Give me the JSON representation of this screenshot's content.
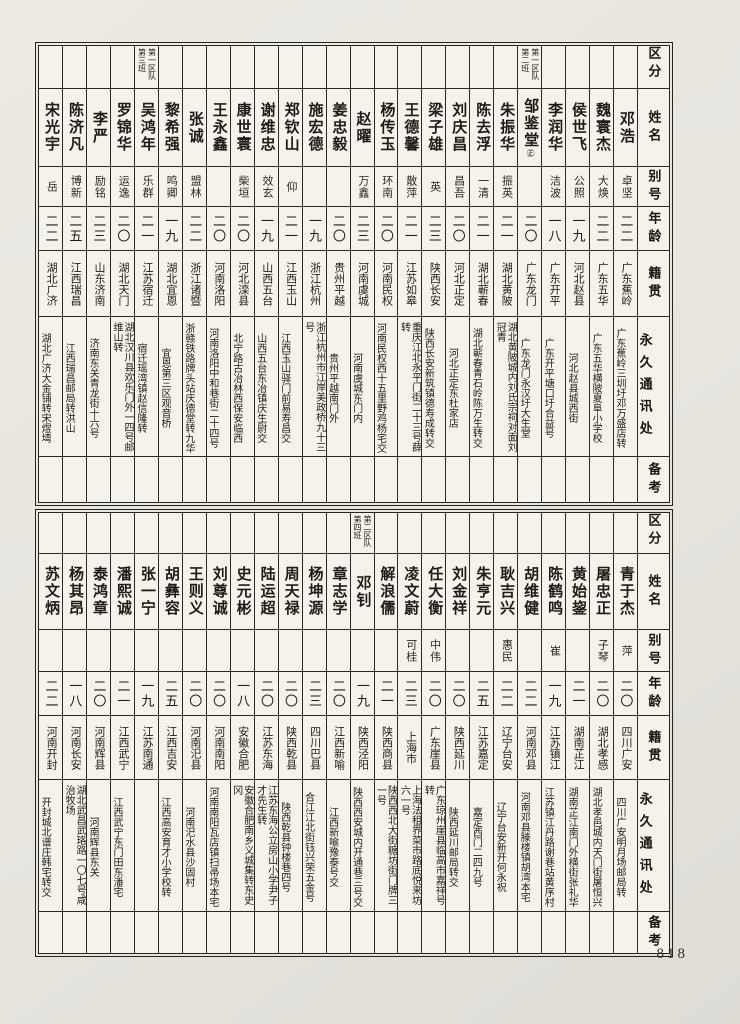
{
  "document": {
    "page_number": "818",
    "column_headers": {
      "group": "区分",
      "name": "姓名",
      "alias": "别号",
      "age": "年龄",
      "origin": "籍贯",
      "address": "永久通讯处",
      "remarks": "备考"
    }
  },
  "sections": [
    {
      "people": [
        {
          "name": "邓浩",
          "mark": "",
          "group": "",
          "alias": "卓坚",
          "age": "二二",
          "origin": "广东蕉岭",
          "address": "广东蕉岭三圳圩邓万盛店转"
        },
        {
          "name": "魏寰杰",
          "mark": "",
          "group": "",
          "alias": "大焕",
          "age": "二二",
          "origin": "广东五华",
          "address": "广东五华横陂夏阜小学校"
        },
        {
          "name": "侯世飞",
          "mark": "",
          "group": "",
          "alias": "公照",
          "age": "一九",
          "origin": "河北赵县",
          "address": "河北赵县城西街"
        },
        {
          "name": "李润华",
          "mark": "",
          "group": "",
          "alias": "洁波",
          "age": "一八",
          "origin": "广东开平",
          "address": "广东开平塘口圩合益号"
        },
        {
          "name": "邹鉴堂",
          "mark": "㊣",
          "group": "第一区队\n第二班",
          "alias": "",
          "age": "二〇",
          "origin": "广东龙门",
          "address": "广东龙门永汉圩大生堂"
        },
        {
          "name": "朱振华",
          "mark": "",
          "group": "",
          "alias": "振英",
          "age": "二一",
          "origin": "湖北黄陂",
          "address": "湖北黄陂城内刘氏宗祠对面刘冠青"
        },
        {
          "name": "陈去浮",
          "mark": "",
          "group": "",
          "alias": "一清",
          "age": "二一",
          "origin": "湖北蕲春",
          "address": "湖北蕲春青石岭陈万生转交"
        },
        {
          "name": "刘庆昌",
          "mark": "",
          "group": "",
          "alias": "昌吾",
          "age": "二〇",
          "origin": "河北正定",
          "address": "河北正定东杜家店"
        },
        {
          "name": "梁子雄",
          "mark": "",
          "group": "",
          "alias": "英",
          "age": "二三",
          "origin": "陕西长安",
          "address": "陕西长安新筑镇德寿成转交"
        },
        {
          "name": "王德馨",
          "mark": "",
          "group": "",
          "alias": "散萍",
          "age": "二一",
          "origin": "江苏如皋",
          "address": "重庆江北永平门街二十三号薛转"
        },
        {
          "name": "杨传玉",
          "mark": "",
          "group": "",
          "alias": "环南",
          "age": "二〇",
          "origin": "河南民权",
          "address": "河南民权西十五里野鸡杨宅交"
        },
        {
          "name": "赵曜",
          "mark": "",
          "group": "",
          "alias": "万鑫",
          "age": "二三",
          "origin": "河南虞城",
          "address": "河南虞城东门内"
        },
        {
          "name": "姜忠毅",
          "mark": "",
          "group": "",
          "alias": "",
          "age": "二〇",
          "origin": "贵州平越",
          "address": "贵州平越南门外"
        },
        {
          "name": "施宏德",
          "mark": "",
          "group": "",
          "alias": "",
          "age": "一九",
          "origin": "浙江杭州",
          "address": "浙江杭州市江岸美政桥九十三号"
        },
        {
          "name": "郑钦山",
          "mark": "",
          "group": "",
          "alias": "仰",
          "age": "二一",
          "origin": "江西玉山",
          "address": "江西玉山驿门前易寿昌交"
        },
        {
          "name": "谢维忠",
          "mark": "",
          "group": "",
          "alias": "效玄",
          "age": "一九",
          "origin": "山西五台",
          "address": "山西五台东冶镇庆生尉交"
        },
        {
          "name": "康世寰",
          "mark": "",
          "group": "",
          "alias": "柴垣",
          "age": "二〇",
          "origin": "河北滦县",
          "address": "北宁路古冶林西保安临西"
        },
        {
          "name": "王永鑫",
          "mark": "",
          "group": "",
          "alias": "",
          "age": "二〇",
          "origin": "河南洛阳",
          "address": "河南洛阳中和巷街二十四号"
        },
        {
          "name": "张诚",
          "mark": "",
          "group": "",
          "alias": "盟林",
          "age": "二二",
          "origin": "浙江诸暨",
          "address": "浙赣铁路牌头站庆德堂转九华"
        },
        {
          "name": "黎希强",
          "mark": "",
          "group": "",
          "alias": "鸣卿",
          "age": "一九",
          "origin": "湖北宜恩",
          "address": "宜恩第三区观音桥"
        },
        {
          "name": "吴鸿年",
          "mark": "",
          "group": "第一区队\n第三班",
          "alias": "乐群",
          "age": "二一",
          "origin": "江苏宿迁",
          "address": "宿迁瑶湾镇赵信隆转"
        },
        {
          "name": "罗锦华",
          "mark": "",
          "group": "",
          "alias": "运逸",
          "age": "二〇",
          "origin": "湖北天门",
          "address": "湖北汉川县欢乐门外一四号邮维山转"
        },
        {
          "name": "李严",
          "mark": "",
          "group": "",
          "alias": "励铭",
          "age": "二三",
          "origin": "山东济南",
          "address": "济南东关青龙街十六号"
        },
        {
          "name": "陈济凡",
          "mark": "",
          "group": "",
          "alias": "博新",
          "age": "二五",
          "origin": "江西瑞昌",
          "address": "江西瑞昌邮局转洪山"
        },
        {
          "name": "宋光宇",
          "mark": "",
          "group": "",
          "alias": "岳",
          "age": "二二",
          "origin": "湖北广济",
          "address": "湖北广济大金铺转宋煜塆"
        }
      ]
    },
    {
      "people": [
        {
          "name": "青于杰",
          "mark": "",
          "group": "",
          "alias": "萍",
          "age": "二〇",
          "origin": "四川广安",
          "address": "四川广安明月场邮局转"
        },
        {
          "name": "屠忠正",
          "mark": "",
          "group": "",
          "alias": "子琴",
          "age": "二〇",
          "origin": "湖北孝感",
          "address": "湖北孝邑城内天门街屠恒兴"
        },
        {
          "name": "黄始鋆",
          "mark": "",
          "group": "",
          "alias": "",
          "age": "二一",
          "origin": "湖南芷江",
          "address": "湖南芷江南门外横街张礼华"
        },
        {
          "name": "陈鹤鸣",
          "mark": "",
          "group": "",
          "alias": "崔",
          "age": "一九",
          "origin": "江苏镇江",
          "address": "江苏镇江丹路谢巷站黄序村"
        },
        {
          "name": "胡维健",
          "mark": "",
          "group": "",
          "alias": "",
          "age": "二二",
          "origin": "河南邓县",
          "address": "河南邓县滕楼镇胡湾本宅"
        },
        {
          "name": "耿吉兴",
          "mark": "",
          "group": "",
          "alias": "惠民",
          "age": "二二",
          "origin": "辽宁台安",
          "address": "辽宁台安新开何永祝"
        },
        {
          "name": "朱亨元",
          "mark": "",
          "group": "",
          "alias": "",
          "age": "二五",
          "origin": "江苏嘉定",
          "address": "嘉定西门二四九号"
        },
        {
          "name": "刘金祥",
          "mark": "",
          "group": "",
          "alias": "",
          "age": "二〇",
          "origin": "陕西延川",
          "address": "陕西延川邮局转交"
        },
        {
          "name": "任大衡",
          "mark": "",
          "group": "",
          "alias": "中伟",
          "age": "二〇",
          "origin": "广东崖县",
          "address": "广东琼州崖县临高市嘉祥号转"
        },
        {
          "name": "凌文蔚",
          "mark": "",
          "group": "",
          "alias": "可桂",
          "age": "二三",
          "origin": "上海市",
          "address": "上海法租界菜市路底悦来坊六一号"
        },
        {
          "name": "解浪儒",
          "mark": "",
          "group": "",
          "alias": "",
          "age": "二一",
          "origin": "陕西商县",
          "address": "陕西西北大街糖坊街门牌三一号"
        },
        {
          "name": "邓钊",
          "mark": "",
          "group": "第二区队\n第四班",
          "alias": "",
          "age": "一九",
          "origin": "陕西泾阳",
          "address": "陕西西安城内开通巷三号交"
        },
        {
          "name": "章志学",
          "mark": "",
          "group": "",
          "alias": "",
          "age": "二〇",
          "origin": "江西新喻",
          "address": "江西新喻豫泰号交"
        },
        {
          "name": "杨坤源",
          "mark": "",
          "group": "",
          "alias": "",
          "age": "二三",
          "origin": "四川巴县",
          "address": "合江江北街钰兴荣五金号"
        },
        {
          "name": "周天禄",
          "mark": "",
          "group": "",
          "alias": "",
          "age": "二〇",
          "origin": "陕西乾县",
          "address": "陕西乾县钟楼巷四号"
        },
        {
          "name": "陆运超",
          "mark": "",
          "group": "",
          "alias": "",
          "age": "二〇",
          "origin": "江苏东海",
          "address": "江苏东海公立房山小学尹子才先生转"
        },
        {
          "name": "史元彬",
          "mark": "",
          "group": "",
          "alias": "",
          "age": "一八",
          "origin": "安徽合肥",
          "address": "安徽合肥南乡义城集转东史冈"
        },
        {
          "name": "刘尊诚",
          "mark": "",
          "group": "",
          "alias": "",
          "age": "二〇",
          "origin": "河南南阳",
          "address": "河南南阳瓦店镇扫帚场本宅"
        },
        {
          "name": "王则义",
          "mark": "",
          "group": "",
          "alias": "",
          "age": "二〇",
          "origin": "河南汜县",
          "address": "河南汜水县沙固村"
        },
        {
          "name": "胡彝容",
          "mark": "",
          "group": "",
          "alias": "",
          "age": "二五",
          "origin": "江西吉安",
          "address": "江西高安育才小学校转"
        },
        {
          "name": "张一宁",
          "mark": "",
          "group": "",
          "alias": "",
          "age": "一九",
          "origin": "江苏南通",
          "address": ""
        },
        {
          "name": "潘熙诚",
          "mark": "",
          "group": "",
          "alias": "",
          "age": "二一",
          "origin": "江西武宁",
          "address": "江西武宁东门田东潘宅"
        },
        {
          "name": "泰鸿章",
          "mark": "",
          "group": "",
          "alias": "",
          "age": "二〇",
          "origin": "河南辉县",
          "address": "河南辉县东关"
        },
        {
          "name": "杨其昂",
          "mark": "",
          "group": "",
          "alias": "",
          "age": "一八",
          "origin": "河南长安",
          "address": "湖北武昌武珞路一〇七号咸治牧场"
        },
        {
          "name": "苏文炳",
          "mark": "",
          "group": "",
          "alias": "",
          "age": "二二",
          "origin": "河南开封",
          "address": "开封城北谱庄韩宅转交"
        }
      ]
    }
  ]
}
